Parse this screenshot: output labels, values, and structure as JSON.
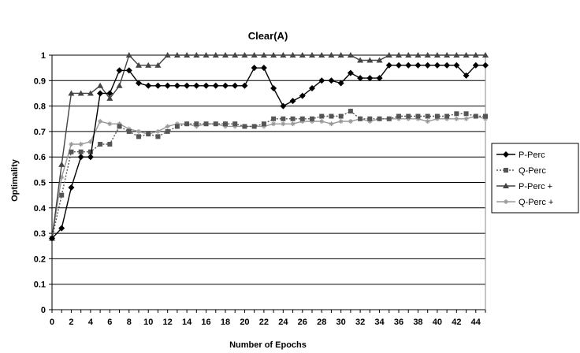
{
  "chart_data": {
    "type": "line",
    "title": "Clear(A)",
    "xlabel": "Number of Epochs",
    "ylabel": "Optimality",
    "xlim": [
      0,
      45
    ],
    "ylim": [
      0,
      1
    ],
    "x_ticks": [
      "0",
      "2",
      "4",
      "6",
      "8",
      "10",
      "12",
      "14",
      "16",
      "18",
      "20",
      "22",
      "24",
      "26",
      "28",
      "30",
      "32",
      "34",
      "36",
      "38",
      "40",
      "42",
      "44"
    ],
    "y_ticks": [
      "0",
      "0.1",
      "0.2",
      "0.3",
      "0.4",
      "0.5",
      "0.6",
      "0.7",
      "0.8",
      "0.9",
      "1"
    ],
    "grid": "horizontal",
    "legend_position": "right",
    "series": [
      {
        "name": "P-Perc",
        "color": "#000000",
        "marker": "diamond",
        "style": "solid",
        "x": [
          0,
          1,
          2,
          3,
          4,
          5,
          6,
          7,
          8,
          9,
          10,
          11,
          12,
          13,
          14,
          15,
          16,
          17,
          18,
          19,
          20,
          21,
          22,
          23,
          24,
          25,
          26,
          27,
          28,
          29,
          30,
          31,
          32,
          33,
          34,
          35,
          36,
          37,
          38,
          39,
          40,
          41,
          42,
          43,
          44,
          45
        ],
        "values": [
          0.28,
          0.32,
          0.48,
          0.6,
          0.6,
          0.85,
          0.85,
          0.94,
          0.94,
          0.89,
          0.88,
          0.88,
          0.88,
          0.88,
          0.88,
          0.88,
          0.88,
          0.88,
          0.88,
          0.88,
          0.88,
          0.95,
          0.95,
          0.87,
          0.8,
          0.82,
          0.84,
          0.87,
          0.9,
          0.9,
          0.89,
          0.93,
          0.91,
          0.91,
          0.91,
          0.96,
          0.96,
          0.96,
          0.96,
          0.96,
          0.96,
          0.96,
          0.96,
          0.92,
          0.96,
          0.96
        ]
      },
      {
        "name": "Q-Perc",
        "color": "#555555",
        "marker": "square",
        "style": "dotted",
        "x": [
          0,
          1,
          2,
          3,
          4,
          5,
          6,
          7,
          8,
          9,
          10,
          11,
          12,
          13,
          14,
          15,
          16,
          17,
          18,
          19,
          20,
          21,
          22,
          23,
          24,
          25,
          26,
          27,
          28,
          29,
          30,
          31,
          32,
          33,
          34,
          35,
          36,
          37,
          38,
          39,
          40,
          41,
          42,
          43,
          44,
          45
        ],
        "values": [
          0.28,
          0.45,
          0.62,
          0.62,
          0.62,
          0.65,
          0.65,
          0.72,
          0.7,
          0.68,
          0.69,
          0.68,
          0.7,
          0.72,
          0.73,
          0.73,
          0.73,
          0.73,
          0.73,
          0.73,
          0.72,
          0.72,
          0.73,
          0.75,
          0.75,
          0.75,
          0.75,
          0.75,
          0.76,
          0.76,
          0.76,
          0.78,
          0.75,
          0.75,
          0.75,
          0.75,
          0.76,
          0.76,
          0.76,
          0.76,
          0.76,
          0.76,
          0.77,
          0.77,
          0.76,
          0.76
        ]
      },
      {
        "name": "P-Perc +",
        "color": "#444444",
        "marker": "triangle",
        "style": "solid",
        "x": [
          0,
          1,
          2,
          3,
          4,
          5,
          6,
          7,
          8,
          9,
          10,
          11,
          12,
          13,
          14,
          15,
          16,
          17,
          18,
          19,
          20,
          21,
          22,
          23,
          24,
          25,
          26,
          27,
          28,
          29,
          30,
          31,
          32,
          33,
          34,
          35,
          36,
          37,
          38,
          39,
          40,
          41,
          42,
          43,
          44,
          45
        ],
        "values": [
          0.28,
          0.57,
          0.85,
          0.85,
          0.85,
          0.88,
          0.83,
          0.88,
          1.0,
          0.96,
          0.96,
          0.96,
          1.0,
          1.0,
          1.0,
          1.0,
          1.0,
          1.0,
          1.0,
          1.0,
          1.0,
          1.0,
          1.0,
          1.0,
          1.0,
          1.0,
          1.0,
          1.0,
          1.0,
          1.0,
          1.0,
          1.0,
          0.98,
          0.98,
          0.98,
          1.0,
          1.0,
          1.0,
          1.0,
          1.0,
          1.0,
          1.0,
          1.0,
          1.0,
          1.0,
          1.0
        ]
      },
      {
        "name": "Q-Perc +",
        "color": "#999999",
        "marker": "star",
        "style": "solid",
        "x": [
          0,
          1,
          2,
          3,
          4,
          5,
          6,
          7,
          8,
          9,
          10,
          11,
          12,
          13,
          14,
          15,
          16,
          17,
          18,
          19,
          20,
          21,
          22,
          23,
          24,
          25,
          26,
          27,
          28,
          29,
          30,
          31,
          32,
          33,
          34,
          35,
          36,
          37,
          38,
          39,
          40,
          41,
          42,
          43,
          44,
          45
        ],
        "values": [
          0.28,
          0.52,
          0.65,
          0.65,
          0.66,
          0.74,
          0.73,
          0.73,
          0.71,
          0.7,
          0.69,
          0.7,
          0.72,
          0.73,
          0.73,
          0.72,
          0.73,
          0.73,
          0.72,
          0.72,
          0.72,
          0.72,
          0.72,
          0.73,
          0.73,
          0.73,
          0.74,
          0.74,
          0.74,
          0.73,
          0.74,
          0.74,
          0.75,
          0.74,
          0.75,
          0.75,
          0.75,
          0.75,
          0.75,
          0.74,
          0.75,
          0.75,
          0.75,
          0.75,
          0.76,
          0.75
        ]
      }
    ]
  }
}
